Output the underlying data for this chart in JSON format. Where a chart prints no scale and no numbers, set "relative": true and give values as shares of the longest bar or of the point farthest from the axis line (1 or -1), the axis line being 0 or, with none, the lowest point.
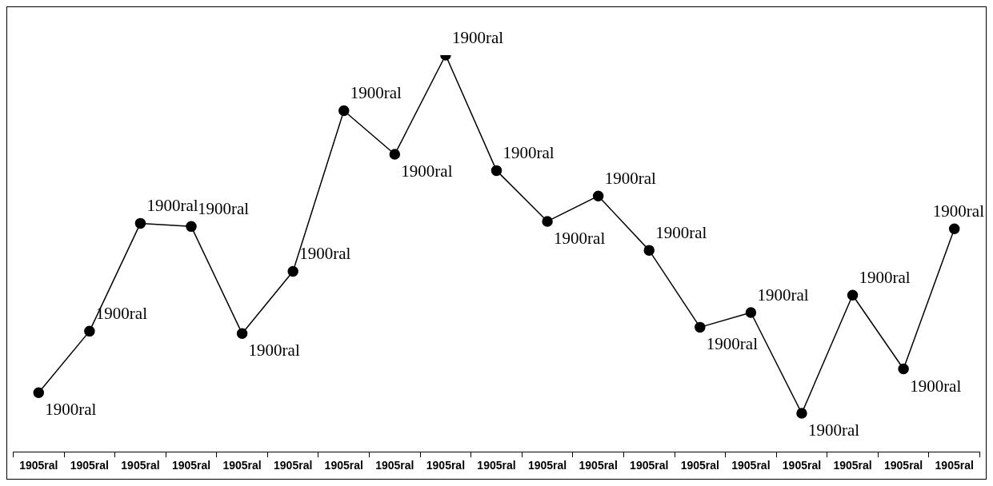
{
  "chart_data": {
    "type": "line",
    "relative": true,
    "categories": [
      "1905ral",
      "1905ral",
      "1905ral",
      "1905ral",
      "1905ral",
      "1905ral",
      "1905ral",
      "1905ral",
      "1905ral",
      "1905ral",
      "1905ral",
      "1905ral",
      "1905ral",
      "1905ral",
      "1905ral",
      "1905ral",
      "1905ral",
      "1905ral",
      "1905ral"
    ],
    "series": [
      {
        "color": "#000000",
        "values": [
          0.149,
          0.304,
          0.576,
          0.568,
          0.298,
          0.455,
          0.86,
          0.75,
          1,
          0.709,
          0.581,
          0.645,
          0.508,
          0.314,
          0.351,
          0.097,
          0.395,
          0.209,
          0.562
        ]
      }
    ],
    "annotations": [
      "1900ral",
      "1900ral",
      "1900ral",
      "1900ral",
      "1900ral",
      "1900ral",
      "1900ral",
      "1900ral",
      "1900ral",
      "1900ral",
      "1900ral",
      "1900ral",
      "1900ral",
      "1900ral",
      "1900ral",
      "1900ral",
      "1900ral",
      "1900ral",
      "1900ral"
    ],
    "marker": "circle",
    "line_style": "solid",
    "legend": false,
    "grid": false
  }
}
